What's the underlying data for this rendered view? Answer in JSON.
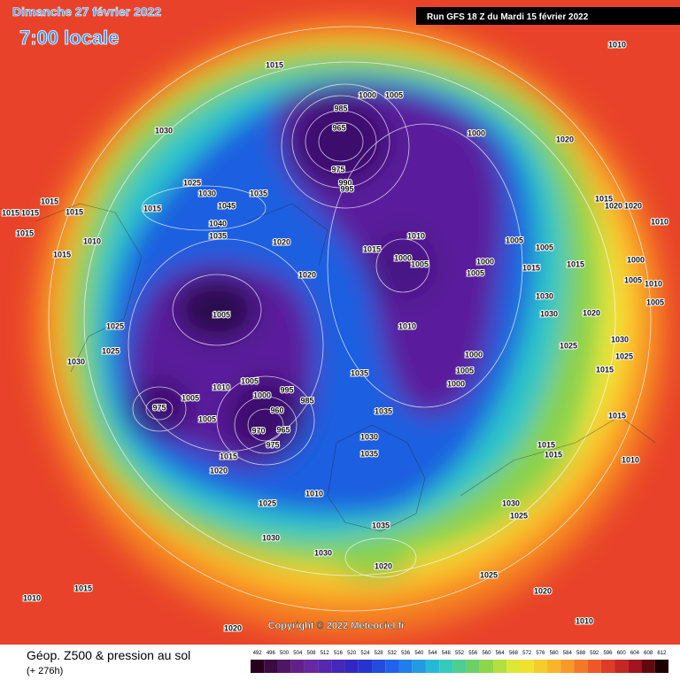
{
  "header": {
    "date": "Dimanche 27 février 2022",
    "time": "7:00 locale",
    "run": "Run GFS 18 Z du Mardi 15 février 2022"
  },
  "map": {
    "copyright": "Copyright © 2022 Meteociel.fr",
    "pressure_labels": [
      1015,
      1000,
      1005,
      985,
      965,
      975,
      990,
      995,
      1000,
      1020,
      1030,
      1025,
      1030,
      1035,
      1045,
      1040,
      1035,
      1015,
      1015,
      1015,
      1015,
      1015,
      1015,
      1010,
      1015,
      1020,
      1020,
      1010,
      1015,
      1000,
      1005,
      1000,
      1005,
      1005,
      1005,
      1015,
      1015,
      1000,
      1005,
      1010,
      1005,
      1030,
      1030,
      1020,
      1005,
      1025,
      1025,
      1030,
      1010,
      1000,
      1005,
      1000,
      1035,
      1010,
      1005,
      995,
      985,
      1000,
      960,
      975,
      1005,
      1005,
      1035,
      970,
      965,
      975,
      1030,
      1035,
      1015,
      1020,
      1025,
      1010,
      1030,
      1025,
      1030,
      1030,
      1035,
      1020,
      1025,
      1015,
      1010,
      1020,
      1010,
      1020,
      1010,
      1015,
      1015,
      1015,
      1025,
      1030,
      1025,
      1015,
      1020,
      1010,
      1010,
      1015,
      1020
    ]
  },
  "legend": {
    "title": "Géop. Z500 & pression au sol",
    "lead": "(+ 276h)",
    "scale": [
      492,
      496,
      500,
      504,
      508,
      512,
      516,
      520,
      524,
      528,
      532,
      536,
      540,
      544,
      548,
      552,
      556,
      560,
      564,
      568,
      572,
      576,
      580,
      584,
      588,
      592,
      596,
      600,
      604,
      608,
      612
    ]
  }
}
